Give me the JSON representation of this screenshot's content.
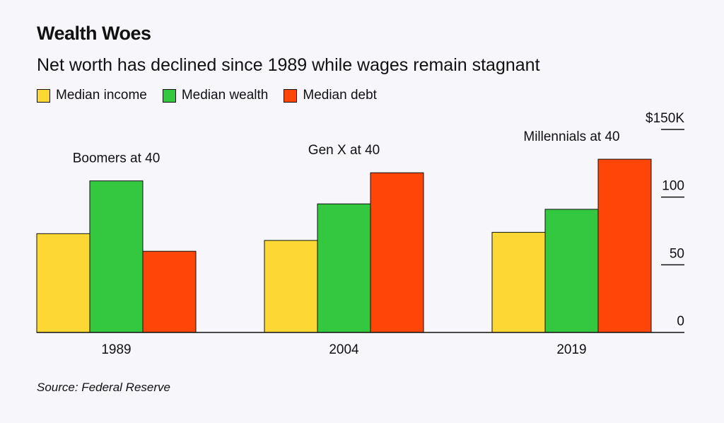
{
  "title": "Wealth Woes",
  "subtitle": "Net worth has declined since 1989 while wages remain stagnant",
  "source": "Source: Federal Reserve",
  "legend": [
    {
      "label": "Median income",
      "color": "#fdd835"
    },
    {
      "label": "Median wealth",
      "color": "#34c840"
    },
    {
      "label": "Median debt",
      "color": "#ff4508"
    }
  ],
  "chart_data": {
    "type": "bar",
    "title": "Wealth Woes",
    "subtitle": "Net worth has declined since 1989 while wages remain stagnant",
    "categories": [
      "1989",
      "2004",
      "2019"
    ],
    "group_labels": [
      "Boomers at 40",
      "Gen X at 40",
      "Millennials at 40"
    ],
    "series": [
      {
        "name": "Median income",
        "color": "#fdd835",
        "values": [
          73,
          68,
          74
        ]
      },
      {
        "name": "Median wealth",
        "color": "#34c840",
        "values": [
          112,
          95,
          91
        ]
      },
      {
        "name": "Median debt",
        "color": "#ff4508",
        "values": [
          60,
          118,
          128
        ]
      }
    ],
    "ylim": [
      0,
      150
    ],
    "y_ticks": [
      0,
      50,
      100,
      150
    ],
    "y_tick_labels": [
      "0",
      "50",
      "100",
      "$150K"
    ],
    "y_axis_side": "right",
    "legend_position": "top-left"
  }
}
